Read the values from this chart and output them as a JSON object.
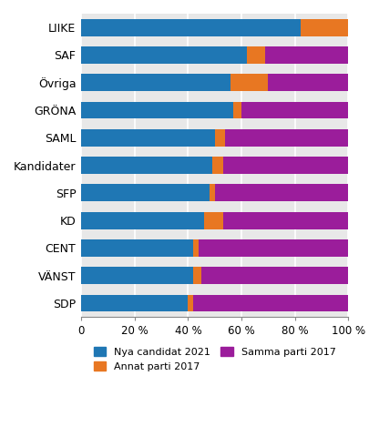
{
  "categories": [
    "SDP",
    "VÄNST",
    "CENT",
    "KD",
    "SFP",
    "Kandidater",
    "SAML",
    "GRÖNA",
    "Övriga",
    "SAF",
    "LIIKE"
  ],
  "nya_candidat": [
    40,
    42,
    42,
    46,
    48,
    49,
    50,
    57,
    56,
    62,
    82
  ],
  "annat_parti": [
    2,
    3,
    2,
    7,
    2,
    4,
    4,
    3,
    14,
    7,
    18
  ],
  "samma_parti": [
    58,
    55,
    56,
    47,
    50,
    47,
    46,
    40,
    30,
    31,
    0
  ],
  "color_nya": "#1F77B4",
  "color_annat": "#E87722",
  "color_samma": "#9B1D9B",
  "legend_nya": "Nya candidat 2021",
  "legend_annat": "Annat parti 2017",
  "legend_samma": "Samma parti 2017",
  "xlabel_ticks": [
    0,
    20,
    40,
    60,
    80,
    100
  ],
  "xlabel_labels": [
    "0",
    "20 %",
    "40 %",
    "60 %",
    "80 %",
    "100 %"
  ],
  "background_color": "#ffffff",
  "axes_facecolor": "#e8e8e8",
  "grid_color": "#ffffff",
  "bar_height": 0.62
}
